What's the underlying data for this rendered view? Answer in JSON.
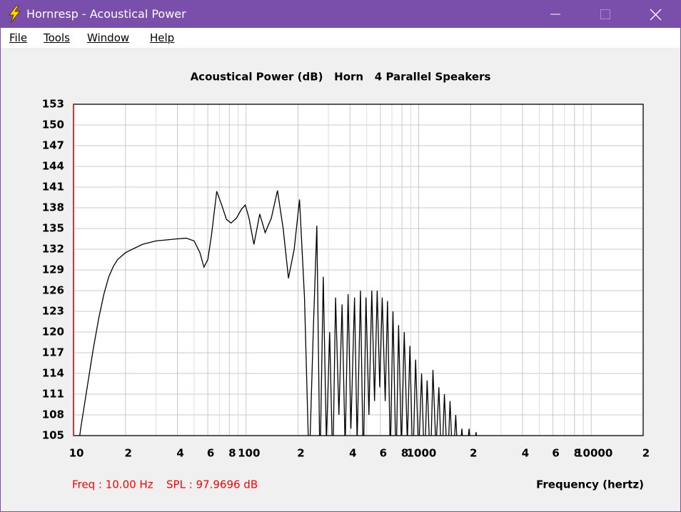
{
  "window": {
    "title": "Hornresp - Acoustical Power",
    "menu": [
      "File",
      "Tools",
      "Window",
      "Help"
    ]
  },
  "chart_data": {
    "type": "line",
    "title": "Acoustical Power (dB)   Horn   4 Parallel Speakers",
    "x_label": "Frequency (hertz)",
    "status": [
      "Freq : 10.00 Hz",
      "SPL : 97.9696 dB"
    ],
    "log_x": true,
    "grid": true,
    "color": "#000000",
    "cursor_color": "#ff0000",
    "xlim": [
      10,
      20000
    ],
    "ylim": [
      105,
      153
    ],
    "xticks": [
      10,
      {
        "value": 20,
        "label": "2"
      },
      {
        "value": 40,
        "label": "4"
      },
      {
        "value": 60,
        "label": "6"
      },
      {
        "value": 80,
        "label": "8"
      },
      100,
      {
        "value": 200,
        "label": "2"
      },
      {
        "value": 400,
        "label": "4"
      },
      {
        "value": 600,
        "label": "6"
      },
      {
        "value": 800,
        "label": "8"
      },
      1000,
      {
        "value": 2000,
        "label": "2"
      },
      {
        "value": 4000,
        "label": "4"
      },
      {
        "value": 6000,
        "label": "6"
      },
      {
        "value": 8000,
        "label": "8"
      },
      10000,
      {
        "value": 20000,
        "label": "2"
      }
    ],
    "xminorticks": [
      30,
      50,
      70,
      90,
      300,
      500,
      700,
      900,
      3000,
      5000,
      7000,
      9000
    ],
    "yticks": [
      105,
      108,
      111,
      114,
      117,
      120,
      123,
      126,
      129,
      132,
      135,
      138,
      141,
      144,
      147,
      150,
      153
    ],
    "x": [
      10,
      11,
      12,
      13,
      14,
      15,
      16,
      17,
      18,
      20,
      25,
      30,
      40,
      45,
      50,
      54,
      57,
      60,
      63,
      67.6,
      72,
      77,
      81.8,
      88,
      94,
      98.9,
      104,
      111,
      120,
      129,
      140,
      152,
      164,
      176,
      190,
      204,
      218,
      232,
      245,
      257,
      268,
      280,
      292,
      305,
      318,
      330,
      345,
      360,
      375,
      390,
      405,
      425,
      440,
      460,
      478,
      495,
      515,
      535,
      555,
      575,
      595,
      615,
      640,
      660,
      685,
      710,
      740,
      765,
      795,
      825,
      860,
      890,
      925,
      960,
      1000,
      1040,
      1080,
      1120,
      1170,
      1210,
      1260,
      1310,
      1360,
      1410,
      1470,
      1520,
      1580,
      1640,
      1700,
      1780,
      1860,
      1960,
      2050,
      2150,
      2300
    ],
    "values": [
      98,
      106,
      112,
      117.5,
      122,
      125.5,
      128,
      129.5,
      130.5,
      131.5,
      132.7,
      133.2,
      133.5,
      133.6,
      133.2,
      131.5,
      129.4,
      130.5,
      134,
      140.4,
      138.5,
      136.3,
      135.8,
      136.5,
      137.8,
      138.4,
      136.5,
      132.7,
      137.1,
      134.4,
      136.5,
      140.5,
      135,
      127.8,
      132,
      139.2,
      125,
      100,
      120,
      135.4,
      100,
      128,
      104,
      120,
      100,
      125,
      108,
      124,
      103,
      125.5,
      106,
      125,
      104,
      126,
      100,
      125,
      108,
      126,
      110,
      126,
      112,
      125,
      110,
      124.5,
      102,
      123,
      100,
      121,
      103,
      120,
      104,
      118,
      100,
      116,
      102,
      114,
      100,
      113,
      100,
      114.5,
      103,
      112,
      100,
      111,
      100,
      110,
      100,
      108,
      100,
      106,
      100,
      106,
      100,
      105.5,
      100
    ]
  }
}
